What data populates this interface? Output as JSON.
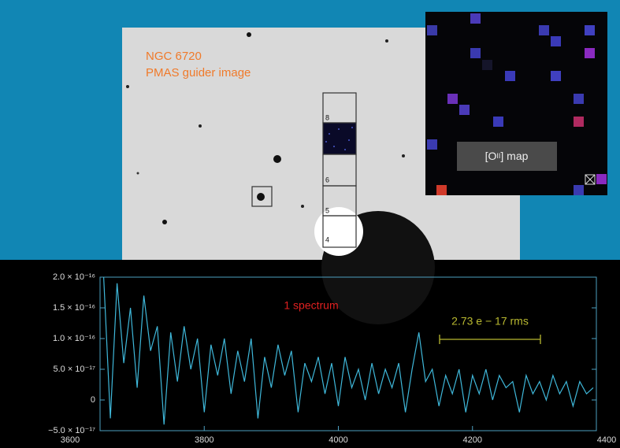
{
  "guider": {
    "object": "NGC 6720",
    "caption": "PMAS guider image",
    "slit_labels": [
      "8",
      "6",
      "5",
      "4"
    ]
  },
  "map": {
    "label_open": "[O",
    "label_ion": "II",
    "label_close": "] map"
  },
  "chart_data": {
    "type": "line",
    "annotation": "1 spectrum",
    "rms_label": "2.73 e − 17 rms",
    "color": "#3fb8da",
    "xlim": [
      3600,
      4400
    ],
    "xticks": [
      3600,
      3800,
      4000,
      4200,
      4400
    ],
    "ylim": [
      -5e-17,
      2e-16
    ],
    "yticks": [
      {
        "value": -5e-17,
        "label": "−5.0 × 10⁻¹⁷"
      },
      0,
      {
        "value": 5e-17,
        "label": "5.0 × 10⁻¹⁷"
      },
      {
        "value": 1e-16,
        "label": "1.0 × 10⁻¹⁶"
      },
      {
        "value": 1.5e-16,
        "label": "1.5 × 10⁻¹⁶"
      },
      {
        "value": 2e-16,
        "label": "2.0 × 10⁻¹⁶"
      }
    ],
    "x": [
      3650,
      3660,
      3670,
      3680,
      3690,
      3700,
      3710,
      3720,
      3730,
      3740,
      3750,
      3760,
      3770,
      3780,
      3790,
      3800,
      3810,
      3820,
      3830,
      3840,
      3850,
      3860,
      3870,
      3880,
      3890,
      3900,
      3910,
      3920,
      3930,
      3940,
      3950,
      3960,
      3970,
      3980,
      3990,
      4000,
      4010,
      4020,
      4030,
      4040,
      4050,
      4060,
      4070,
      4080,
      4090,
      4100,
      4110,
      4120,
      4130,
      4140,
      4150,
      4160,
      4170,
      4180,
      4190,
      4200,
      4210,
      4220,
      4230,
      4240,
      4250,
      4260,
      4270,
      4280,
      4290,
      4300,
      4310,
      4320,
      4330,
      4340,
      4350,
      4360,
      4370,
      4380
    ],
    "values": [
      2e-16,
      -3e-17,
      1.9e-16,
      6e-17,
      1.5e-16,
      2e-17,
      1.7e-16,
      8e-17,
      1.2e-16,
      -4e-17,
      1.1e-16,
      3e-17,
      1.2e-16,
      5e-17,
      1e-16,
      -2e-17,
      9e-17,
      4e-17,
      1e-16,
      1e-17,
      8e-17,
      3e-17,
      1e-16,
      -3e-17,
      7e-17,
      2e-17,
      9e-17,
      4e-17,
      8e-17,
      -2e-17,
      6e-17,
      3e-17,
      7e-17,
      1e-17,
      6e-17,
      -1e-17,
      7e-17,
      2e-17,
      5e-17,
      0,
      6e-17,
      1e-17,
      5e-17,
      2e-17,
      6e-17,
      -2e-17,
      5e-17,
      1.1e-16,
      3e-17,
      5e-17,
      -1e-17,
      4e-17,
      1e-17,
      5e-17,
      -2e-17,
      4e-17,
      1e-17,
      5e-17,
      0,
      4e-17,
      2e-17,
      3e-17,
      -2e-17,
      4e-17,
      1e-17,
      3e-17,
      0,
      4e-17,
      1e-17,
      3e-17,
      -1e-17,
      3e-17,
      1e-17,
      2e-17
    ]
  }
}
